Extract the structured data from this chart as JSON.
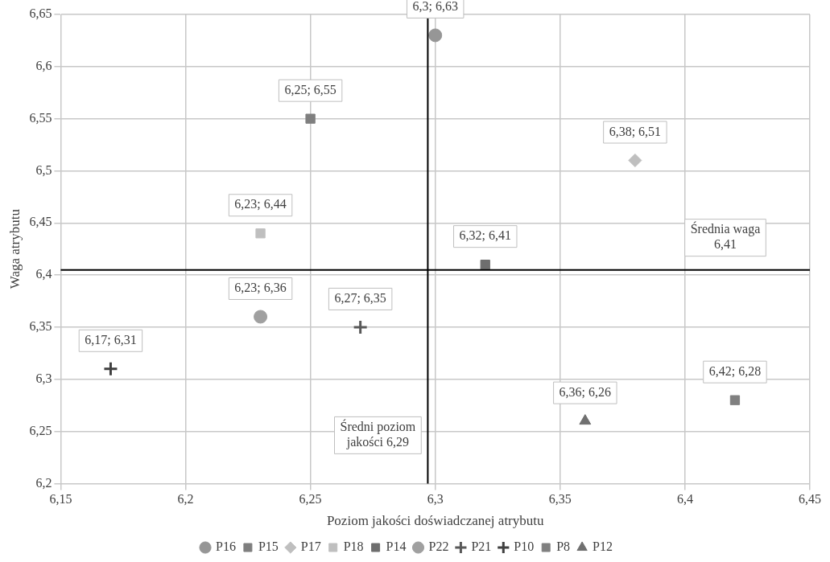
{
  "chart_data": {
    "type": "scatter",
    "xlabel": "Poziom jakości doświadczanej atrybutu",
    "ylabel": "Waga atrybutu",
    "xlim": [
      6.15,
      6.45
    ],
    "xticks": [
      {
        "value": 6.15,
        "label": "6,15"
      },
      {
        "value": 6.2,
        "label": "6,2"
      },
      {
        "value": 6.25,
        "label": "6,25"
      },
      {
        "value": 6.3,
        "label": "6,3"
      },
      {
        "value": 6.35,
        "label": "6,35"
      },
      {
        "value": 6.4,
        "label": "6,4"
      },
      {
        "value": 6.45,
        "label": "6,45"
      }
    ],
    "ylim": [
      6.2,
      6.65
    ],
    "yticks": [
      {
        "value": 6.2,
        "label": "6,2"
      },
      {
        "value": 6.25,
        "label": "6,25"
      },
      {
        "value": 6.3,
        "label": "6,3"
      },
      {
        "value": 6.35,
        "label": "6,35"
      },
      {
        "value": 6.4,
        "label": "6,4"
      },
      {
        "value": 6.45,
        "label": "6,45"
      },
      {
        "value": 6.5,
        "label": "6,5"
      },
      {
        "value": 6.55,
        "label": "6,55"
      },
      {
        "value": 6.6,
        "label": "6,6"
      },
      {
        "value": 6.65,
        "label": "6,65"
      }
    ],
    "grid": true,
    "legend": "bottom",
    "series": [
      {
        "name": "P16",
        "color": "#969696",
        "marker": "circle",
        "x": [
          6.3
        ],
        "values": [
          6.63
        ],
        "value_labels": [
          "6,3; 6,63"
        ]
      },
      {
        "name": "P15",
        "color": "#7f7f7f",
        "marker": "square",
        "x": [
          6.25
        ],
        "values": [
          6.55
        ],
        "value_labels": [
          "6,25; 6,55"
        ]
      },
      {
        "name": "P17",
        "color": "#bfbfbf",
        "marker": "diamond",
        "x": [
          6.38
        ],
        "values": [
          6.51
        ],
        "value_labels": [
          "6,38; 6,51"
        ]
      },
      {
        "name": "P18",
        "color": "#bfbfbf",
        "marker": "square",
        "x": [
          6.23
        ],
        "values": [
          6.44
        ],
        "value_labels": [
          "6,23; 6,44"
        ]
      },
      {
        "name": "P14",
        "color": "#6e6e6e",
        "marker": "square",
        "x": [
          6.32
        ],
        "values": [
          6.41
        ],
        "value_labels": [
          "6,32; 6,41"
        ]
      },
      {
        "name": "P22",
        "color": "#a0a0a0",
        "marker": "circle",
        "x": [
          6.23
        ],
        "values": [
          6.36
        ],
        "value_labels": [
          "6,23; 6,36"
        ]
      },
      {
        "name": "P21",
        "color": "#595959",
        "marker": "cross",
        "x": [
          6.27
        ],
        "values": [
          6.35
        ],
        "value_labels": [
          "6,27; 6,35"
        ]
      },
      {
        "name": "P10",
        "color": "#404040",
        "marker": "cross",
        "x": [
          6.17
        ],
        "values": [
          6.31
        ],
        "value_labels": [
          "6,17; 6,31"
        ]
      },
      {
        "name": "P8",
        "color": "#808080",
        "marker": "square",
        "x": [
          6.42
        ],
        "values": [
          6.28
        ],
        "value_labels": [
          "6,42; 6,28"
        ]
      },
      {
        "name": "P12",
        "color": "#707070",
        "marker": "triangle",
        "x": [
          6.36
        ],
        "values": [
          6.26
        ],
        "value_labels": [
          "6,36; 6,26"
        ]
      }
    ],
    "ref_lines": [
      {
        "axis": "x",
        "value": 6.297,
        "label": "Średni poziom jakości 6,29",
        "color": "#000000"
      },
      {
        "axis": "y",
        "value": 6.405,
        "label": "Średnia waga 6,41",
        "color": "#000000"
      }
    ]
  }
}
